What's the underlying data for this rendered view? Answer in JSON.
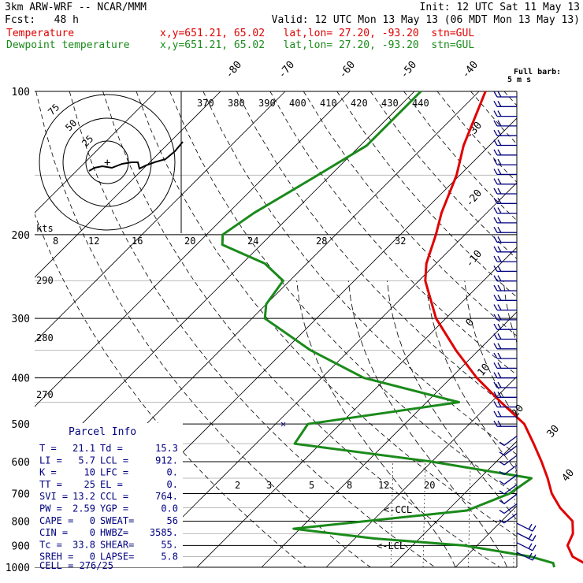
{
  "header": {
    "model": "3km ARW-WRF -- NCAR/MMM",
    "init": "Init: 12 UTC Sat 11 May 13",
    "fcst": "Fcst:   48 h",
    "valid": "Valid: 12 UTC Mon 13 May 13 (06 MDT Mon 13 May 13)",
    "temp_label": "Temperature",
    "temp_loc": "x,y=651.21, 65.02   lat,lon= 27.20, -93.20  stn=GUL",
    "dew_label": "Dewpoint temperature",
    "dew_loc": "x,y=651.21, 65.02   lat,lon= 27.20, -93.20  stn=GUL",
    "barb_legend": [
      "Full barb:",
      "5 m s"
    ]
  },
  "colors": {
    "temperature": "#e00000",
    "dewpoint": "#1a8a1a",
    "barbs": "#000080",
    "panel_text": "#000080",
    "header_red": "#e00000",
    "header_green": "#1a8a1a"
  },
  "chart_data": {
    "type": "skew-T log-P sounding",
    "pressure_levels": [
      "100",
      "200",
      "300",
      "400",
      "500",
      "600",
      "700",
      "800",
      "900",
      "1000"
    ],
    "isotherm_labels": [
      "-80",
      "-70",
      "-60",
      "-50",
      "-40",
      "-30",
      "-20",
      "-10",
      "0",
      "10",
      "20",
      "30",
      "40"
    ],
    "theta_labels": [
      "370",
      "380",
      "390",
      "400",
      "410",
      "420",
      "430",
      "440"
    ],
    "mixing_ratio_labels": [
      "2",
      "3",
      "5",
      "8",
      "12",
      "20"
    ],
    "hodo_kts_label": "kts",
    "hodo_axis_labels": [
      "8",
      "12",
      "16",
      "20",
      "24",
      "28",
      "32"
    ],
    "hodo_ring_labels": [
      "75",
      "50",
      "25"
    ],
    "theta_side_labels": [
      "290",
      "280",
      "270"
    ],
    "ccl_label": "<-CCL",
    "lcl_label": "<-LCL",
    "temperature": [
      {
        "p": 100,
        "t": -69.0
      },
      {
        "p": 130,
        "t": -64.0
      },
      {
        "p": 150,
        "t": -60.5
      },
      {
        "p": 180,
        "t": -57.0
      },
      {
        "p": 200,
        "t": -54.5
      },
      {
        "p": 230,
        "t": -51.5
      },
      {
        "p": 250,
        "t": -49.0
      },
      {
        "p": 300,
        "t": -41.5
      },
      {
        "p": 350,
        "t": -33.5
      },
      {
        "p": 400,
        "t": -26.0
      },
      {
        "p": 450,
        "t": -18.5
      },
      {
        "p": 500,
        "t": -11.5
      },
      {
        "p": 550,
        "t": -7.0
      },
      {
        "p": 600,
        "t": -3.0
      },
      {
        "p": 650,
        "t": 0.5
      },
      {
        "p": 700,
        "t": 3.5
      },
      {
        "p": 750,
        "t": 7.0
      },
      {
        "p": 800,
        "t": 11.0
      },
      {
        "p": 850,
        "t": 13.0
      },
      {
        "p": 900,
        "t": 14.0
      },
      {
        "p": 950,
        "t": 16.5
      },
      {
        "p": 1000,
        "t": 21.1
      }
    ],
    "dewpoint": [
      {
        "p": 100,
        "t": -79.0
      },
      {
        "p": 130,
        "t": -79.0
      },
      {
        "p": 150,
        "t": -82.0
      },
      {
        "p": 180,
        "t": -86.0
      },
      {
        "p": 200,
        "t": -87.5
      },
      {
        "p": 210,
        "t": -86.0
      },
      {
        "p": 230,
        "t": -76.5
      },
      {
        "p": 250,
        "t": -71.0
      },
      {
        "p": 280,
        "t": -70.0
      },
      {
        "p": 300,
        "t": -68.0
      },
      {
        "p": 350,
        "t": -56.0
      },
      {
        "p": 400,
        "t": -43.5
      },
      {
        "p": 450,
        "t": -25.0
      },
      {
        "p": 500,
        "t": -45.0
      },
      {
        "p": 550,
        "t": -44.0
      },
      {
        "p": 600,
        "t": -20.0
      },
      {
        "p": 650,
        "t": -2.0
      },
      {
        "p": 700,
        "t": -3.0
      },
      {
        "p": 760,
        "t": -7.0
      },
      {
        "p": 800,
        "t": -21.0
      },
      {
        "p": 830,
        "t": -31.0
      },
      {
        "p": 870,
        "t": -17.0
      },
      {
        "p": 900,
        "t": -2.0
      },
      {
        "p": 950,
        "t": 10.0
      },
      {
        "p": 980,
        "t": 14.5
      },
      {
        "p": 1000,
        "t": 15.3
      }
    ]
  },
  "parcel_info": {
    "title": "Parcel Info",
    "rows": [
      {
        "k1": "T  =",
        "v1": "21.1",
        "k2": "Td =",
        "v2": "15.3"
      },
      {
        "k1": "LI =",
        "v1": "5.7",
        "k2": "LCL =",
        "v2": "912."
      },
      {
        "k1": "K  =",
        "v1": "10",
        "k2": "LFC =",
        "v2": "0."
      },
      {
        "k1": "TT =",
        "v1": "25",
        "k2": "EL  =",
        "v2": "0."
      },
      {
        "k1": "SVI =",
        "v1": "13.2",
        "k2": "CCL =",
        "v2": "764."
      },
      {
        "k1": "PW =",
        "v1": "2.59",
        "k2": "YGP =",
        "v2": "0.0"
      },
      {
        "k1": "CAPE =",
        "v1": "0",
        "k2": "SWEAT=",
        "v2": "56"
      },
      {
        "k1": "CIN =",
        "v1": "0",
        "k2": "HWBZ=",
        "v2": "3585."
      },
      {
        "k1": "Tc =",
        "v1": "33.8",
        "k2": "SHEAR=",
        "v2": "55."
      },
      {
        "k1": "SREH =",
        "v1": "0",
        "k2": "LAPSE=",
        "v2": "5.8"
      }
    ],
    "cell": "CELL = 276/25"
  }
}
